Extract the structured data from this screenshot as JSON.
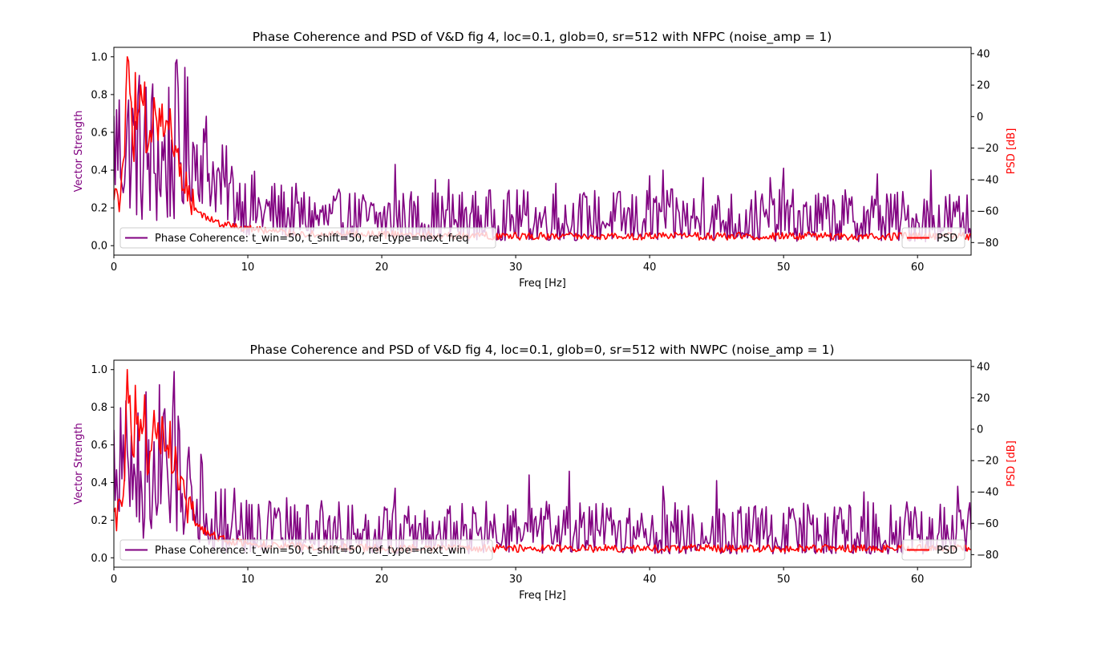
{
  "colors": {
    "coherence": "#800080",
    "psd": "#ff0000",
    "axes": "#000000",
    "legend_border": "#cccccc"
  },
  "chart_data": [
    {
      "type": "line",
      "title": "Phase Coherence and PSD of V&D fig 4, loc=0.1, glob=0, sr=512 with NFPC (noise_amp = 1)",
      "xlabel": "Freq [Hz]",
      "ylabel": "Vector Strength",
      "ylabel_right": "PSD [dB]",
      "xlim": [
        0,
        64
      ],
      "ylim": [
        -0.05,
        1.05
      ],
      "ylim_right": [
        -88,
        44
      ],
      "xticks": [
        0,
        10,
        20,
        30,
        40,
        50,
        60
      ],
      "yticks": [
        0.0,
        0.2,
        0.4,
        0.6,
        0.8,
        1.0
      ],
      "yticks_right": [
        -80,
        -60,
        -40,
        -20,
        0,
        20,
        40
      ],
      "grid": false,
      "legend_left": "lower-left",
      "legend_right": "lower-right",
      "series": [
        {
          "name": "Phase Coherence: t_win=50, t_shift=50, ref_type=next_freq",
          "axis": "left",
          "x_step": 0.1,
          "envelope": [
            [
              0,
              0.25,
              0.95
            ],
            [
              1,
              0.2,
              0.99
            ],
            [
              2,
              0.12,
              0.98
            ],
            [
              3,
              0.1,
              0.98
            ],
            [
              4,
              0.1,
              0.97
            ],
            [
              5,
              0.15,
              1.0
            ],
            [
              6,
              0.25,
              0.85
            ],
            [
              7,
              0.2,
              0.75
            ],
            [
              8,
              0.15,
              0.55
            ],
            [
              9,
              0.1,
              0.5
            ],
            [
              10,
              0.05,
              0.42
            ],
            [
              12,
              0.05,
              0.35
            ],
            [
              16,
              0.03,
              0.3
            ],
            [
              20,
              0.03,
              0.3
            ],
            [
              64,
              0.02,
              0.3
            ]
          ],
          "peaks": [
            [
              21,
              0.43
            ],
            [
              24,
              0.35
            ],
            [
              25,
              0.35
            ],
            [
              33,
              0.33
            ],
            [
              40,
              0.37
            ],
            [
              41,
              0.4
            ],
            [
              44,
              0.36
            ],
            [
              49,
              0.36
            ],
            [
              50,
              0.41
            ],
            [
              57,
              0.38
            ],
            [
              61,
              0.4
            ]
          ]
        },
        {
          "name": "PSD",
          "axis": "right",
          "x_step": 0.1,
          "baseline": [
            [
              0,
              -56
            ],
            [
              0.5,
              -52
            ],
            [
              0.8,
              -30
            ],
            [
              1,
              38
            ],
            [
              1.5,
              -20
            ],
            [
              2,
              10
            ],
            [
              2.5,
              -25
            ],
            [
              3,
              -10
            ],
            [
              3.5,
              -5
            ],
            [
              4,
              -15
            ],
            [
              4.5,
              -20
            ],
            [
              5,
              -35
            ],
            [
              5.5,
              -50
            ],
            [
              6,
              -60
            ],
            [
              7,
              -65
            ],
            [
              8,
              -68
            ],
            [
              9,
              -70
            ],
            [
              10,
              -71
            ],
            [
              12,
              -73
            ],
            [
              15,
              -75
            ],
            [
              20,
              -75
            ],
            [
              30,
              -76
            ],
            [
              64,
              -76
            ]
          ],
          "peaks": [
            [
              1.0,
              38
            ],
            [
              1.6,
              28
            ],
            [
              2.3,
              22
            ],
            [
              3.0,
              12
            ],
            [
              3.6,
              8
            ],
            [
              4.2,
              5
            ],
            [
              5.0,
              -30
            ],
            [
              5.6,
              -44
            ]
          ]
        }
      ]
    },
    {
      "type": "line",
      "title": "Phase Coherence and PSD of V&D fig 4, loc=0.1, glob=0, sr=512 with NWPC (noise_amp = 1)",
      "xlabel": "Freq [Hz]",
      "ylabel": "Vector Strength",
      "ylabel_right": "PSD [dB]",
      "xlim": [
        0,
        64
      ],
      "ylim": [
        -0.05,
        1.05
      ],
      "ylim_right": [
        -88,
        44
      ],
      "xticks": [
        0,
        10,
        20,
        30,
        40,
        50,
        60
      ],
      "yticks": [
        0.0,
        0.2,
        0.4,
        0.6,
        0.8,
        1.0
      ],
      "yticks_right": [
        -80,
        -60,
        -40,
        -20,
        0,
        20,
        40
      ],
      "grid": false,
      "legend_left": "lower-left",
      "legend_right": "lower-right",
      "series": [
        {
          "name": "Phase Coherence: t_win=50, t_shift=50, ref_type=next_win",
          "axis": "left",
          "x_step": 0.1,
          "envelope": [
            [
              0,
              0.25,
              0.9
            ],
            [
              1,
              0.15,
              0.95
            ],
            [
              2,
              0.08,
              0.98
            ],
            [
              3,
              0.08,
              0.98
            ],
            [
              4,
              0.08,
              0.99
            ],
            [
              5,
              0.1,
              1.0
            ],
            [
              5.5,
              0.15,
              0.85
            ],
            [
              6,
              0.1,
              0.6
            ],
            [
              7,
              0.05,
              0.45
            ],
            [
              8,
              0.03,
              0.38
            ],
            [
              10,
              0.03,
              0.33
            ],
            [
              20,
              0.02,
              0.3
            ],
            [
              64,
              0.02,
              0.3
            ]
          ],
          "peaks": [
            [
              6.5,
              0.55
            ],
            [
              9,
              0.37
            ],
            [
              21,
              0.37
            ],
            [
              31,
              0.44
            ],
            [
              34,
              0.46
            ],
            [
              41,
              0.38
            ],
            [
              45,
              0.41
            ],
            [
              56,
              0.35
            ],
            [
              63,
              0.38
            ]
          ]
        },
        {
          "name": "PSD",
          "axis": "right",
          "x_step": 0.1,
          "baseline": [
            [
              0,
              -56
            ],
            [
              0.5,
              -52
            ],
            [
              0.8,
              -30
            ],
            [
              1,
              38
            ],
            [
              1.5,
              -20
            ],
            [
              2,
              10
            ],
            [
              2.5,
              -25
            ],
            [
              3,
              -10
            ],
            [
              3.5,
              -5
            ],
            [
              4,
              -15
            ],
            [
              4.5,
              -20
            ],
            [
              5,
              -35
            ],
            [
              5.5,
              -50
            ],
            [
              6,
              -60
            ],
            [
              7,
              -66
            ],
            [
              8,
              -70
            ],
            [
              9,
              -72
            ],
            [
              10,
              -73
            ],
            [
              12,
              -74
            ],
            [
              15,
              -75
            ],
            [
              20,
              -76
            ],
            [
              30,
              -76
            ],
            [
              64,
              -76
            ]
          ],
          "peaks": [
            [
              1.0,
              38
            ],
            [
              1.6,
              28
            ],
            [
              2.3,
              22
            ],
            [
              3.0,
              12
            ],
            [
              3.6,
              8
            ],
            [
              4.2,
              5
            ],
            [
              5.0,
              -30
            ],
            [
              5.6,
              -44
            ]
          ]
        }
      ]
    }
  ]
}
